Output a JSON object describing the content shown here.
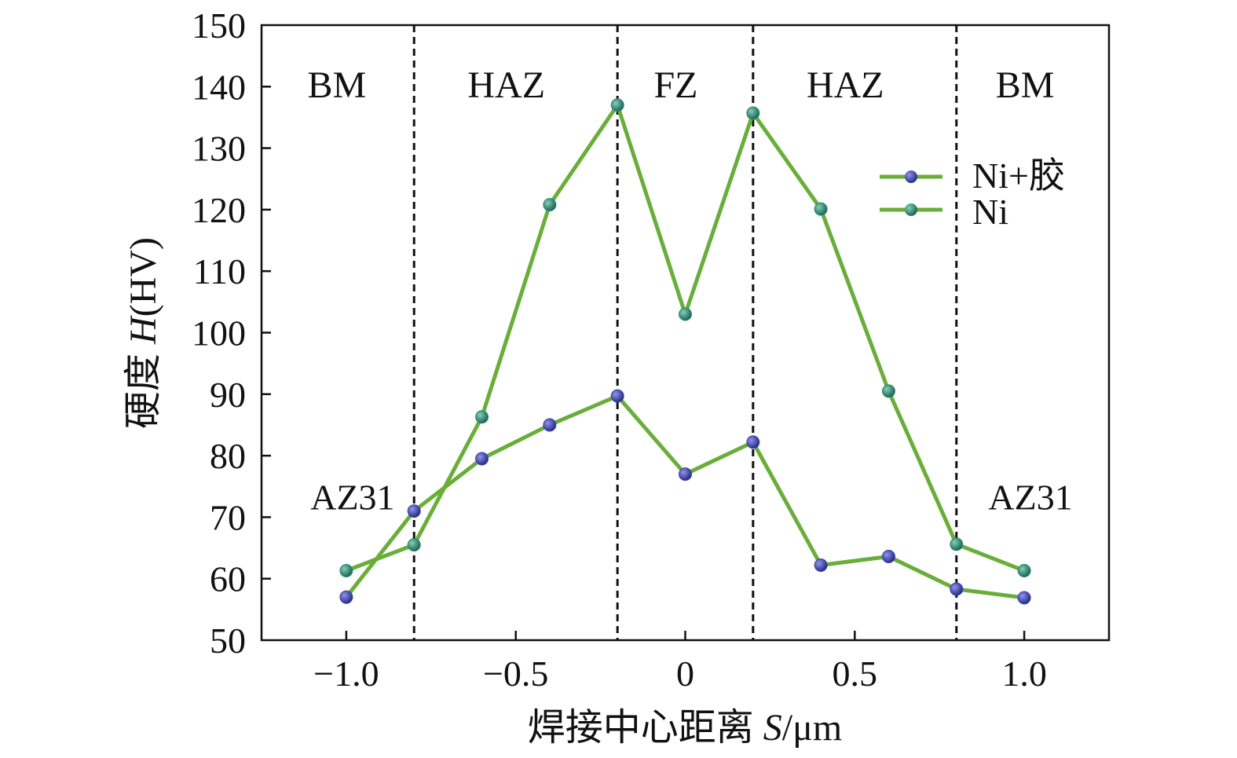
{
  "chart_data": {
    "type": "line",
    "xlabel": {
      "prefix": "焊接中心距离 ",
      "var": "S",
      "unit": "/μm"
    },
    "ylabel": {
      "prefix": "硬度 ",
      "var": "H",
      "unit": "(HV)"
    },
    "xlim": [
      -1.25,
      1.25
    ],
    "ylim": [
      50,
      150
    ],
    "xticks": [
      -1.0,
      -0.5,
      0,
      0.5,
      1.0
    ],
    "xtick_labels": [
      "−1.0",
      "−0.5",
      "0",
      "0.5",
      "1.0"
    ],
    "yticks": [
      50,
      60,
      70,
      80,
      90,
      100,
      110,
      120,
      130,
      140,
      150
    ],
    "ytick_labels": [
      "50",
      "60",
      "70",
      "80",
      "90",
      "100",
      "110",
      "120",
      "130",
      "140",
      "150"
    ],
    "grid": false,
    "legend_position": "upper-right",
    "boundaries": [
      -0.8,
      -0.2,
      0.2,
      0.8
    ],
    "regions": [
      {
        "label": "BM",
        "x": -1.0
      },
      {
        "label": "HAZ",
        "x": -0.5
      },
      {
        "label": "FZ",
        "x": 0.0
      },
      {
        "label": "HAZ",
        "x": 0.5
      },
      {
        "label": "BM",
        "x": 1.03
      }
    ],
    "annotations": [
      {
        "text": "AZ31",
        "x": -1.0,
        "y": 72
      },
      {
        "text": "AZ31",
        "x": 1.0,
        "y": 72
      }
    ],
    "line_color": "#6aae3a",
    "series": [
      {
        "name": "Ni+胶",
        "marker_color": "#3b3fb0",
        "x": [
          -1.0,
          -0.8,
          -0.6,
          -0.4,
          -0.2,
          0.0,
          0.2,
          0.4,
          0.6,
          0.8,
          1.0
        ],
        "y": [
          57,
          71,
          79.5,
          85,
          89.7,
          77,
          82.2,
          62.2,
          63.6,
          58.3,
          56.9
        ]
      },
      {
        "name": "Ni",
        "marker_color": "#2e8a74",
        "x": [
          -1.0,
          -0.8,
          -0.6,
          -0.4,
          -0.2,
          0.0,
          0.2,
          0.4,
          0.6,
          0.8,
          1.0
        ],
        "y": [
          61.3,
          65.5,
          86.3,
          120.8,
          137,
          103,
          135.7,
          120.1,
          90.5,
          65.6,
          61.3
        ]
      }
    ]
  }
}
